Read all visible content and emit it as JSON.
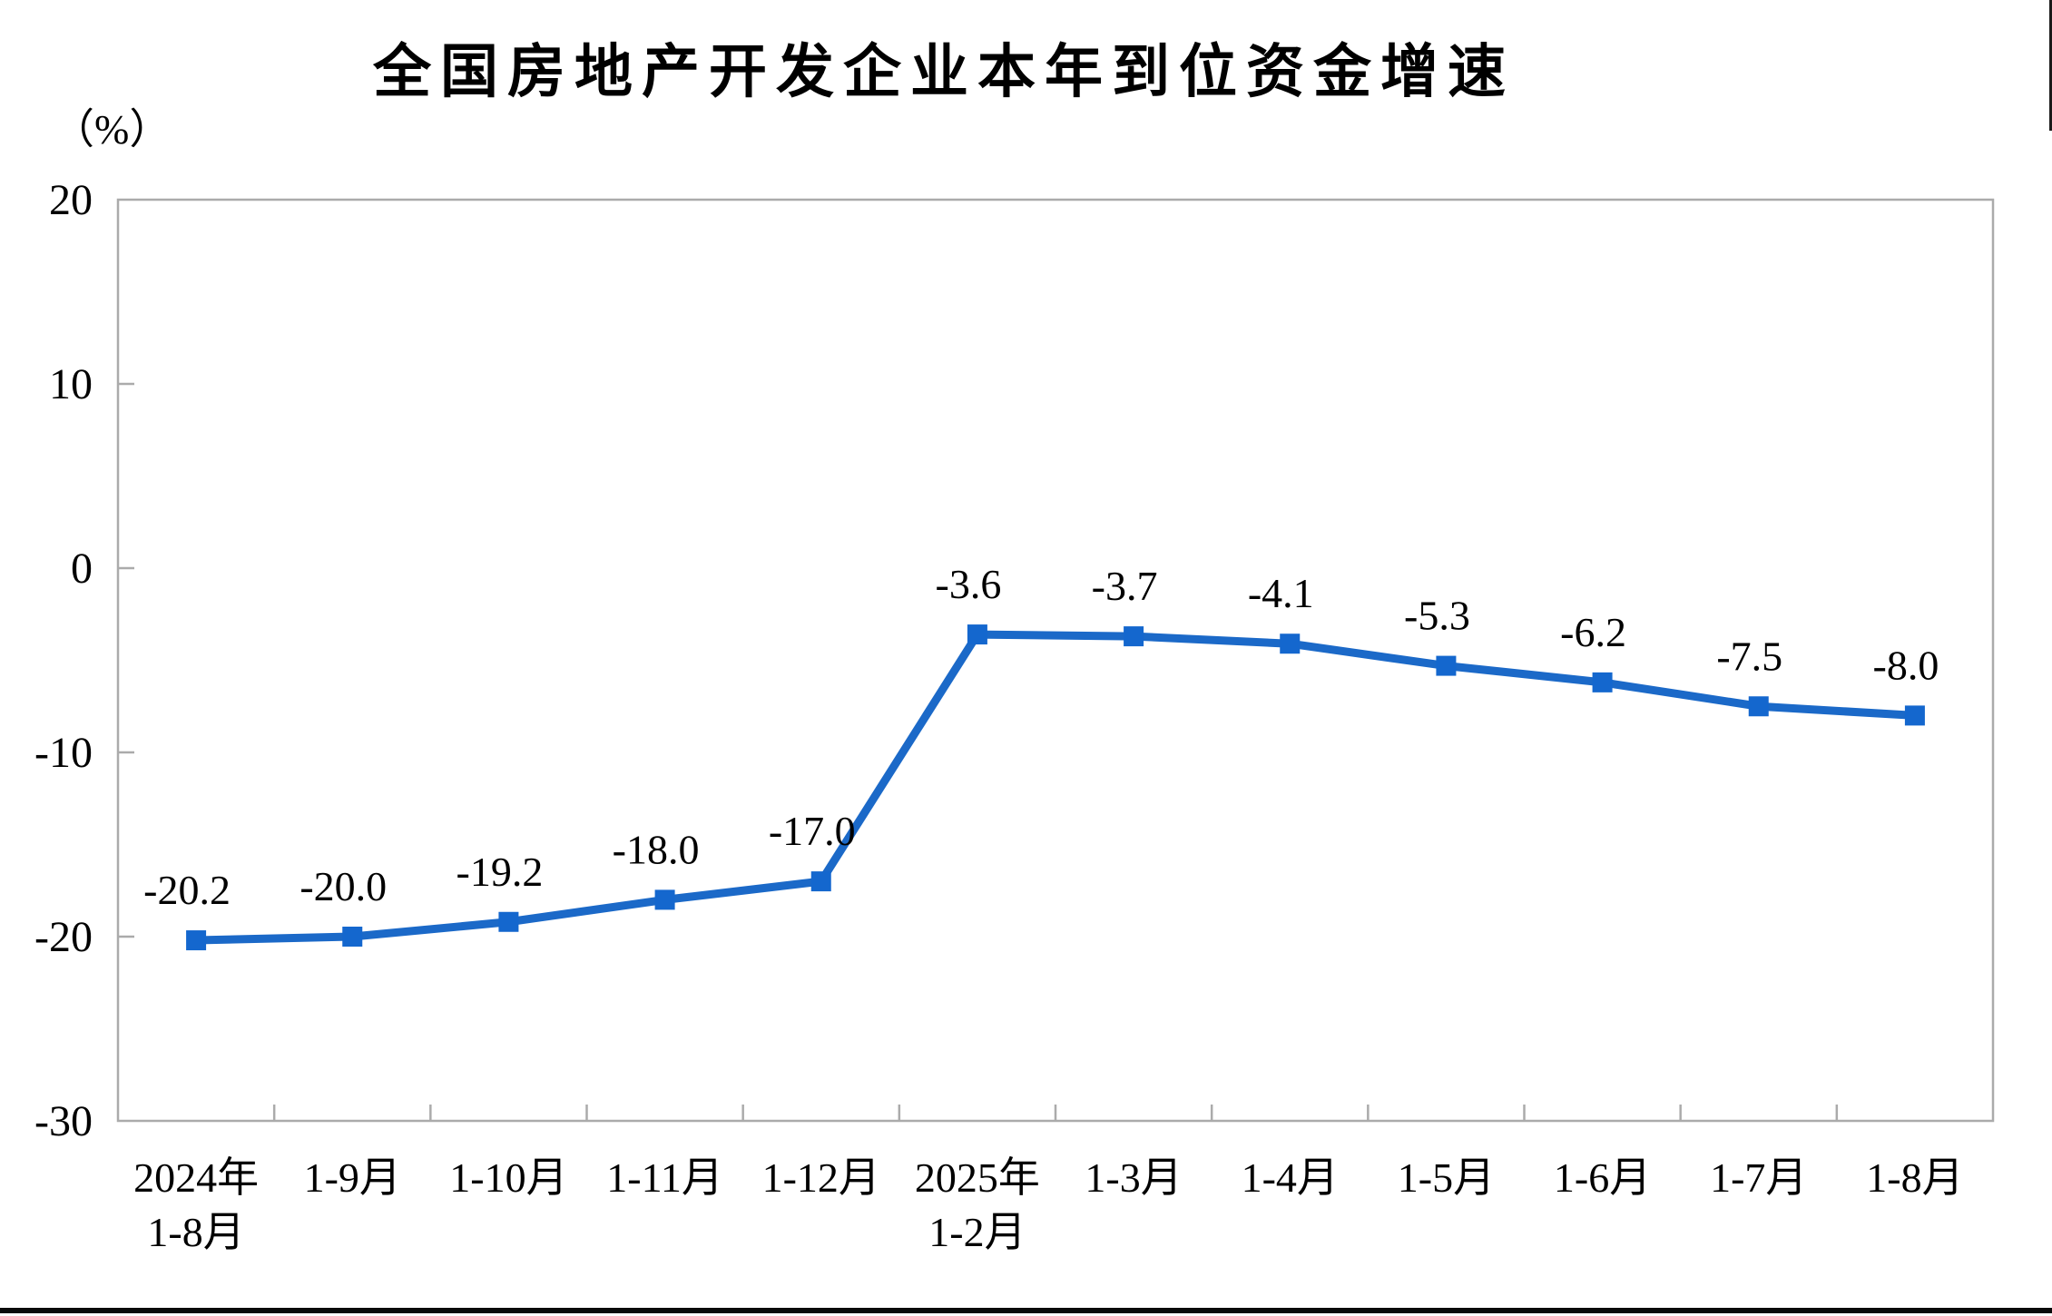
{
  "chart_data": {
    "type": "line",
    "title": "全国房地产开发企业本年到位资金增速",
    "unit_label": "（%）",
    "categories": [
      "2024年\n1-8月",
      "1-9月",
      "1-10月",
      "1-11月",
      "1-12月",
      "2025年\n1-2月",
      "1-3月",
      "1-4月",
      "1-5月",
      "1-6月",
      "1-7月",
      "1-8月"
    ],
    "values": [
      -20.2,
      -20.0,
      -19.2,
      -18.0,
      -17.0,
      -3.6,
      -3.7,
      -4.1,
      -5.3,
      -6.2,
      -7.5,
      -8.0
    ],
    "data_labels": [
      "-20.2",
      "-20.0",
      "-19.2",
      "-18.0",
      "-17.0",
      "-3.6",
      "-3.7",
      "-4.1",
      "-5.3",
      "-6.2",
      "-7.5",
      "-8.0"
    ],
    "ylim": [
      -30,
      20
    ],
    "yticks": [
      20,
      10,
      0,
      -10,
      -20,
      -30
    ],
    "grid": false,
    "legend_position": "none",
    "marker_shape": "square",
    "colors": {
      "line": "#1B69C8",
      "marker": "#1467CE",
      "axis": "#ABABAB",
      "text": "#000000"
    }
  }
}
